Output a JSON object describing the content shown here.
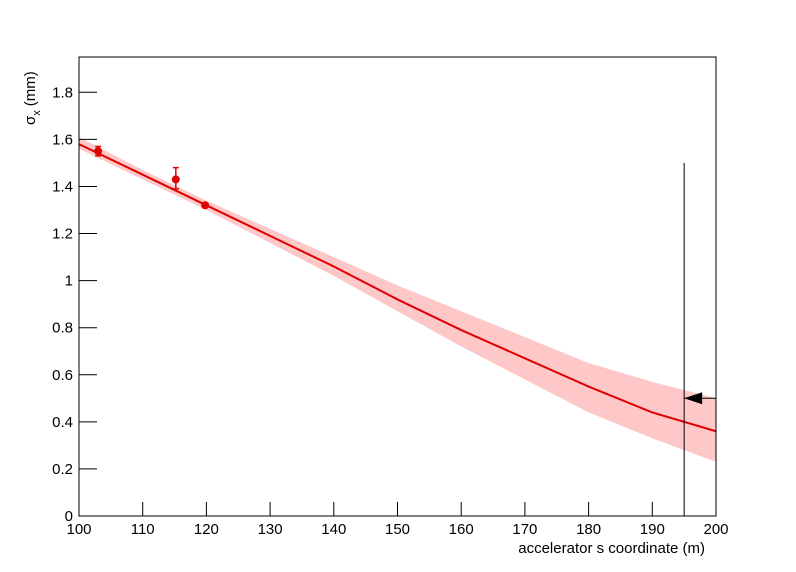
{
  "chart_data": {
    "type": "scatter",
    "xlabel": "accelerator s coordinate (m)",
    "ylabel_symbol": "σ",
    "ylabel_subscript": "x",
    "ylabel_suffix": "(mm)",
    "xlim": [
      100,
      200
    ],
    "ylim": [
      0,
      1.95
    ],
    "xticks": [
      100,
      110,
      120,
      130,
      140,
      150,
      160,
      170,
      180,
      190,
      200
    ],
    "yticks": [
      0,
      0.2,
      0.4,
      0.6,
      0.8,
      1,
      1.2,
      1.4,
      1.6,
      1.8
    ],
    "color": "#e00000",
    "band_color": "#ffc8c8",
    "points": {
      "x": [
        103,
        115.2,
        119.8
      ],
      "y": [
        1.55,
        1.43,
        1.32
      ],
      "yerr_up": [
        0.02,
        0.05,
        0.01
      ],
      "yerr_down": [
        0.02,
        0.04,
        0.01
      ]
    },
    "fit": {
      "x": [
        100,
        110,
        120,
        130,
        140,
        150,
        160,
        170,
        180,
        190,
        200
      ],
      "y": [
        1.58,
        1.45,
        1.32,
        1.19,
        1.06,
        0.92,
        0.79,
        0.67,
        0.55,
        0.44,
        0.36
      ],
      "upper": [
        1.61,
        1.47,
        1.34,
        1.22,
        1.1,
        0.98,
        0.87,
        0.76,
        0.65,
        0.57,
        0.5
      ],
      "lower": [
        1.56,
        1.43,
        1.3,
        1.16,
        1.02,
        0.87,
        0.72,
        0.58,
        0.44,
        0.33,
        0.23
      ]
    },
    "marker": {
      "x": 195,
      "ymax": 1.5,
      "arrow_y": 0.5
    }
  }
}
